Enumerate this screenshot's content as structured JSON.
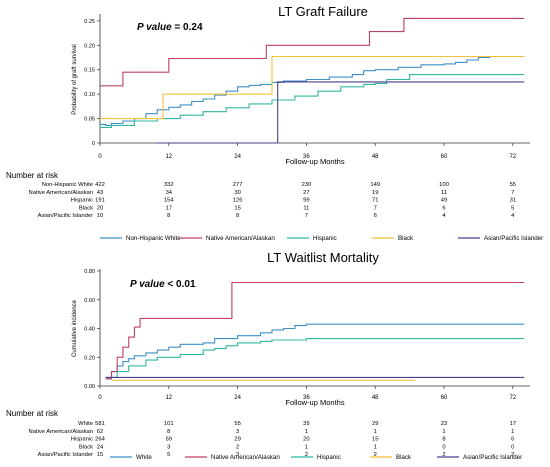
{
  "chart_data": [
    {
      "type": "line",
      "title": "LT Graft Failure",
      "pvalue_label": "P value",
      "pvalue_text": " = 0.24",
      "xlabel": "Follow-up Months",
      "ylabel": "Probability of graft survival",
      "xlim": [
        0,
        75
      ],
      "ylim": [
        0,
        0.26
      ],
      "x_ticks": [
        0,
        12,
        24,
        36,
        48,
        60,
        72
      ],
      "y_ticks": [
        0,
        0.05,
        0.1,
        0.15,
        0.2,
        0.25
      ],
      "y_tick_labels": [
        "0",
        "0.05",
        "0.10",
        "0.15",
        "0.20",
        "0.25"
      ],
      "grid": false,
      "legend_position": "bottom",
      "series": [
        {
          "name": "Non-Hispanic White",
          "color": "#3e8fc8",
          "points": [
            [
              0,
              0.038
            ],
            [
              1,
              0.036
            ],
            [
              2,
              0.04
            ],
            [
              4,
              0.045
            ],
            [
              6,
              0.05
            ],
            [
              8,
              0.06
            ],
            [
              10,
              0.068
            ],
            [
              12,
              0.073
            ],
            [
              14,
              0.078
            ],
            [
              16,
              0.085
            ],
            [
              18,
              0.09
            ],
            [
              20,
              0.098
            ],
            [
              22,
              0.106
            ],
            [
              24,
              0.115
            ],
            [
              26,
              0.118
            ],
            [
              28,
              0.12
            ],
            [
              30,
              0.124
            ],
            [
              32,
              0.127
            ],
            [
              36,
              0.13
            ],
            [
              40,
              0.135
            ],
            [
              44,
              0.14
            ],
            [
              46,
              0.148
            ],
            [
              48,
              0.15
            ],
            [
              52,
              0.155
            ],
            [
              56,
              0.16
            ],
            [
              60,
              0.162
            ],
            [
              62,
              0.165
            ],
            [
              64,
              0.17
            ],
            [
              66,
              0.175
            ],
            [
              68,
              0.177
            ],
            [
              74,
              0.177
            ]
          ]
        },
        {
          "name": "Native American/Alaskan",
          "color": "#c0405e",
          "points": [
            [
              0,
              0.117
            ],
            [
              3,
              0.117
            ],
            [
              4,
              0.145
            ],
            [
              11,
              0.145
            ],
            [
              12,
              0.173
            ],
            [
              28,
              0.173
            ],
            [
              29,
              0.2
            ],
            [
              46,
              0.2
            ],
            [
              47,
              0.228
            ],
            [
              52,
              0.228
            ],
            [
              53,
              0.255
            ],
            [
              74,
              0.255
            ]
          ]
        },
        {
          "name": "Hispanic",
          "color": "#2fb8a0",
          "points": [
            [
              0,
              0.032
            ],
            [
              2,
              0.036
            ],
            [
              6,
              0.045
            ],
            [
              10,
              0.05
            ],
            [
              14,
              0.057
            ],
            [
              18,
              0.064
            ],
            [
              22,
              0.072
            ],
            [
              26,
              0.08
            ],
            [
              30,
              0.088
            ],
            [
              34,
              0.096
            ],
            [
              38,
              0.106
            ],
            [
              42,
              0.115
            ],
            [
              46,
              0.12
            ],
            [
              48,
              0.122
            ],
            [
              50,
              0.13
            ],
            [
              54,
              0.14
            ],
            [
              74,
              0.14
            ]
          ]
        },
        {
          "name": "Black",
          "color": "#f2c23a",
          "points": [
            [
              0,
              0.05
            ],
            [
              10,
              0.05
            ],
            [
              11,
              0.1
            ],
            [
              29,
              0.1
            ],
            [
              30,
              0.177
            ],
            [
              74,
              0.177
            ]
          ]
        },
        {
          "name": "Asian/Pacific Islander",
          "color": "#4b3e8c",
          "points": [
            [
              10,
              0
            ],
            [
              30,
              0
            ],
            [
              31,
              0.125
            ],
            [
              74,
              0.125
            ]
          ]
        }
      ],
      "risk_table": {
        "heading": "Number at risk",
        "rows": [
          {
            "label": "Non-Hispanic White",
            "values": [
              "422",
              "332",
              "277",
              "230",
              "149",
              "100",
              "55"
            ]
          },
          {
            "label": "Native American/Alaskan",
            "values": [
              "43",
              "34",
              "30",
              "27",
              "19",
              "11",
              "7"
            ]
          },
          {
            "label": "Hispanic",
            "values": [
              "191",
              "154",
              "126",
              "99",
              "71",
              "49",
              "31"
            ]
          },
          {
            "label": "Black",
            "values": [
              "20",
              "17",
              "15",
              "11",
              "7",
              "6",
              "5"
            ]
          },
          {
            "label": "Asian/Pacific Islander",
            "values": [
              "10",
              "8",
              "8",
              "7",
              "6",
              "4",
              "4"
            ]
          }
        ]
      }
    },
    {
      "type": "line",
      "title": "LT Waitlist Mortality",
      "pvalue_label": "P value",
      "pvalue_text": " < 0.01",
      "xlabel": "Follow-up Months",
      "ylabel": "Cumulative incidence",
      "xlim": [
        0,
        75
      ],
      "ylim": [
        0,
        0.8
      ],
      "x_ticks": [
        0,
        12,
        24,
        36,
        48,
        60,
        72
      ],
      "y_ticks": [
        0,
        0.2,
        0.4,
        0.6,
        0.8
      ],
      "y_tick_labels": [
        "0.00",
        "0.20",
        "0.40",
        "0.60",
        "0.80"
      ],
      "grid": false,
      "legend_position": "bottom",
      "series": [
        {
          "name": "White",
          "color": "#3e8fc8",
          "points": [
            [
              1,
              0.05
            ],
            [
              2,
              0.1
            ],
            [
              3,
              0.14
            ],
            [
              4,
              0.17
            ],
            [
              5,
              0.19
            ],
            [
              6,
              0.21
            ],
            [
              8,
              0.23
            ],
            [
              10,
              0.25
            ],
            [
              12,
              0.27
            ],
            [
              14,
              0.29
            ],
            [
              18,
              0.3
            ],
            [
              20,
              0.33
            ],
            [
              24,
              0.35
            ],
            [
              28,
              0.37
            ],
            [
              30,
              0.39
            ],
            [
              32,
              0.4
            ],
            [
              34,
              0.42
            ],
            [
              36,
              0.43
            ],
            [
              74,
              0.43
            ]
          ]
        },
        {
          "name": "Native American/Alaskan",
          "color": "#c0405e",
          "points": [
            [
              1,
              0.05
            ],
            [
              2,
              0.1
            ],
            [
              3,
              0.2
            ],
            [
              4,
              0.27
            ],
            [
              5,
              0.34
            ],
            [
              6,
              0.41
            ],
            [
              7,
              0.47
            ],
            [
              22,
              0.47
            ],
            [
              23,
              0.72
            ],
            [
              74,
              0.72
            ]
          ]
        },
        {
          "name": "Hispanic",
          "color": "#2fb8a0",
          "points": [
            [
              1,
              0.06
            ],
            [
              3,
              0.1
            ],
            [
              5,
              0.14
            ],
            [
              8,
              0.18
            ],
            [
              10,
              0.2
            ],
            [
              14,
              0.22
            ],
            [
              18,
              0.25
            ],
            [
              20,
              0.26
            ],
            [
              22,
              0.28
            ],
            [
              24,
              0.3
            ],
            [
              28,
              0.31
            ],
            [
              30,
              0.32
            ],
            [
              36,
              0.33
            ],
            [
              74,
              0.33
            ]
          ]
        },
        {
          "name": "Black",
          "color": "#f2c23a",
          "points": [
            [
              2,
              0.04
            ],
            [
              55,
              0.04
            ]
          ]
        },
        {
          "name": "Asian/Pacific Islander",
          "color": "#4b3e8c",
          "points": [
            [
              1,
              0.06
            ],
            [
              74,
              0.06
            ]
          ]
        }
      ],
      "risk_table": {
        "heading": "Number at risk",
        "rows": [
          {
            "label": "White",
            "values": [
              "581",
              "101",
              "55",
              "39",
              "29",
              "23",
              "17"
            ]
          },
          {
            "label": "Native American/Alaskan",
            "values": [
              "62",
              "8",
              "3",
              "1",
              "1",
              "1",
              "1"
            ]
          },
          {
            "label": "Hispanic",
            "values": [
              "264",
              "59",
              "29",
              "20",
              "15",
              "8",
              "6"
            ]
          },
          {
            "label": "Black",
            "values": [
              "24",
              "3",
              "2",
              "1",
              "1",
              "0",
              "0"
            ]
          },
          {
            "label": "Asian/Pacific Islander",
            "values": [
              "15",
              "5",
              "3",
              "2",
              "2",
              "2",
              "2"
            ]
          }
        ]
      }
    }
  ]
}
